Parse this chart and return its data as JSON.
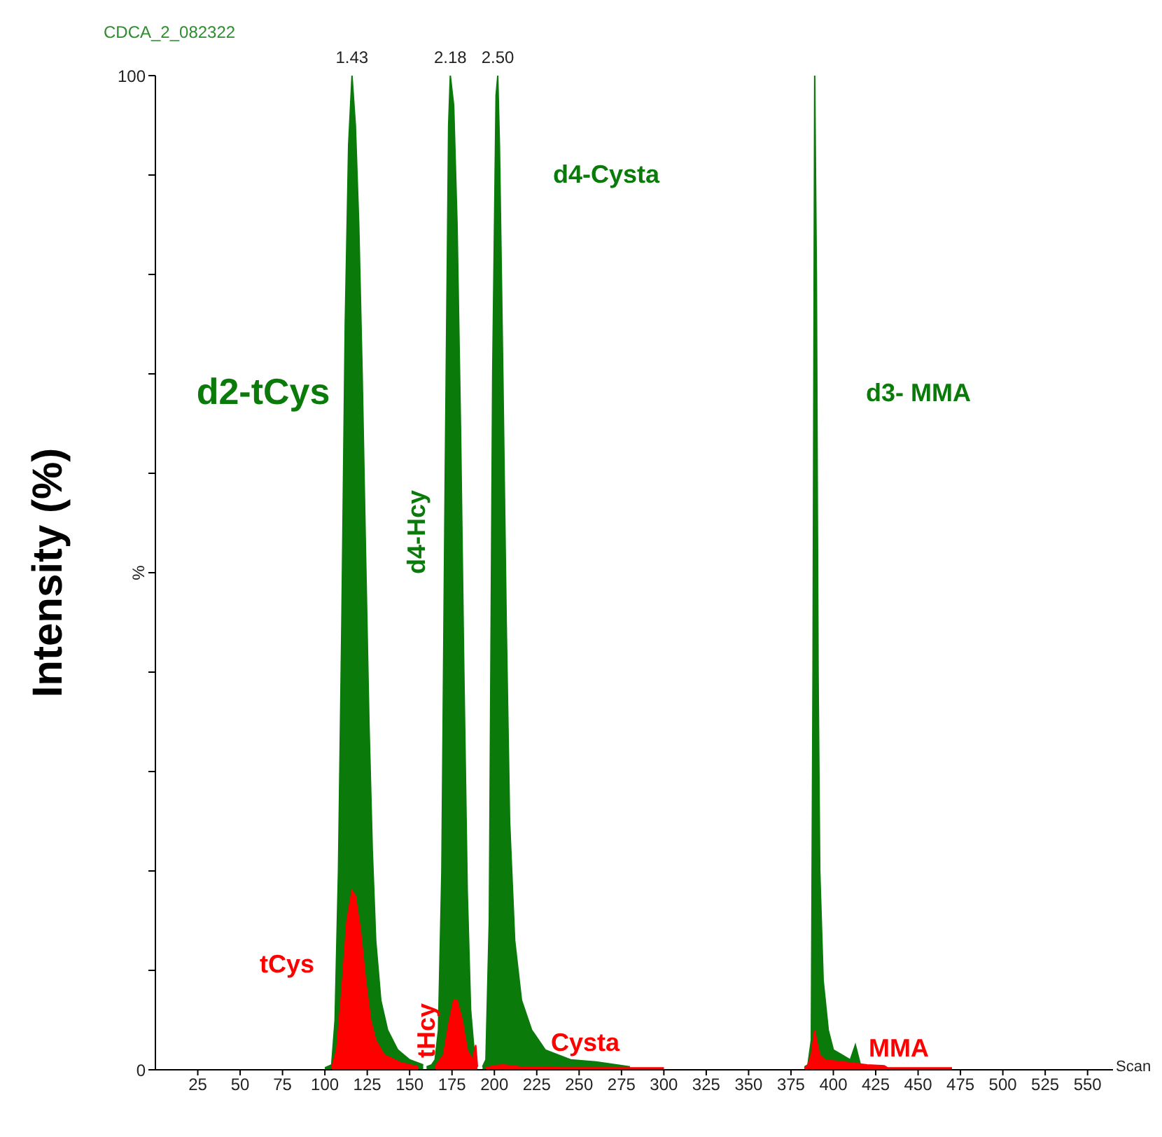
{
  "chart_data": {
    "type": "area",
    "title": "CDCA_2_082322",
    "xlabel": "Scan",
    "ylabel": "Intensity (%)",
    "annotations": [
      "%",
      {
        "text": "1.43",
        "x": 116,
        "y": 100
      },
      {
        "text": "2.18",
        "x": 174,
        "y": 100
      },
      {
        "text": "2.50",
        "x": 202,
        "y": 100
      }
    ],
    "xlim": [
      0,
      565
    ],
    "xticks": [
      25,
      50,
      75,
      100,
      125,
      150,
      175,
      200,
      225,
      250,
      275,
      300,
      325,
      350,
      375,
      400,
      425,
      450,
      475,
      500,
      525,
      550
    ],
    "ylim": [
      0,
      100
    ],
    "yticks": [
      0,
      {
        "value": 10,
        "label": null
      },
      {
        "value": 20,
        "label": null
      },
      {
        "value": 30,
        "label": null
      },
      {
        "value": 40,
        "label": null
      },
      {
        "value": 50,
        "label": null
      },
      {
        "value": 60,
        "label": null
      },
      {
        "value": 70,
        "label": null
      },
      {
        "value": 80,
        "label": null
      },
      {
        "value": 90,
        "label": null
      },
      100
    ],
    "series": [
      {
        "name": "d2-tCys",
        "color": "#0a7a0a",
        "x": [
          100,
          104,
          106,
          108,
          110,
          112,
          114,
          116,
          118,
          120,
          122,
          124,
          126,
          128,
          130,
          133,
          137,
          143,
          150,
          158
        ],
        "values": [
          0.2,
          0.5,
          5,
          20,
          45,
          75,
          93,
          100,
          95,
          85,
          70,
          52,
          35,
          22,
          13,
          7,
          4,
          2,
          1,
          0.5
        ]
      },
      {
        "name": "d4-Hcy",
        "color": "#0a7a0a",
        "x": [
          160,
          163,
          165,
          167,
          169,
          171,
          173,
          174,
          176,
          178,
          180,
          182,
          184,
          186,
          188,
          189,
          190
        ],
        "values": [
          0.3,
          0.5,
          1,
          4,
          20,
          60,
          95,
          100,
          97,
          85,
          65,
          40,
          18,
          6,
          2,
          0.5,
          0.3
        ]
      },
      {
        "name": "d4-Cysta",
        "color": "#0a7a0a",
        "x": [
          193,
          195,
          197,
          199,
          201,
          202,
          203,
          205,
          207,
          209,
          212,
          216,
          222,
          230,
          245,
          260,
          280
        ],
        "values": [
          0.3,
          1,
          15,
          70,
          98,
          100,
          93,
          70,
          45,
          25,
          13,
          7,
          4,
          2,
          1,
          0.8,
          0.3
        ]
      },
      {
        "name": "d3- MMA",
        "color": "#0a7a0a",
        "x": [
          383,
          385,
          387,
          388,
          389,
          390,
          391,
          392,
          394,
          397,
          400,
          405,
          410,
          413,
          416,
          420
        ],
        "values": [
          0.3,
          0.5,
          3,
          40,
          100,
          80,
          40,
          20,
          9,
          4,
          2,
          1.5,
          1,
          2.5,
          0.5,
          0.3
        ]
      },
      {
        "name": "tCys",
        "color": "#ff0000",
        "x": [
          104,
          107,
          110,
          113,
          116,
          118,
          121,
          124,
          127,
          130,
          135,
          145,
          155
        ],
        "values": [
          0.2,
          2,
          8,
          15,
          18,
          17.5,
          14,
          9,
          5,
          3,
          1.5,
          0.7,
          0.3
        ]
      },
      {
        "name": "tHcy",
        "color": "#ff0000",
        "x": [
          165,
          170,
          173,
          176,
          178,
          181,
          184,
          187,
          189,
          190
        ],
        "values": [
          0.3,
          1.5,
          4.5,
          7,
          7,
          5,
          2,
          1,
          2.5,
          0.3
        ]
      },
      {
        "name": "Cysta",
        "color": "#ff0000",
        "x": [
          195,
          200,
          205,
          210,
          215,
          240,
          270,
          300
        ],
        "values": [
          0.2,
          0.4,
          0.5,
          0.4,
          0.3,
          0.2,
          0.2,
          0.2
        ]
      },
      {
        "name": "MMA",
        "color": "#ff0000",
        "x": [
          383,
          385,
          387,
          389,
          390,
          392,
          395,
          400,
          405,
          410,
          420,
          430,
          432,
          450,
          470
        ],
        "values": [
          0.2,
          0.5,
          1.5,
          4,
          3,
          1.5,
          1,
          0.9,
          0.8,
          0.7,
          0.5,
          0.4,
          0.2,
          0.2,
          0.2
        ]
      }
    ]
  }
}
